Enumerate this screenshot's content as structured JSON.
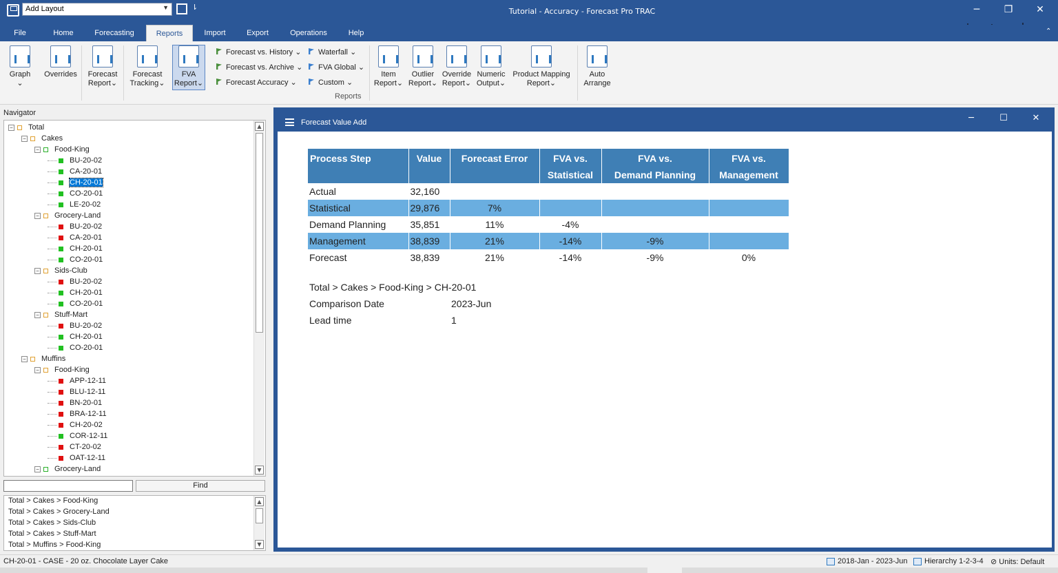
{
  "titlebar": {
    "layout_value": "Add Layout",
    "app_title": "Tutorial - Accuracy - Forecast Pro TRAC",
    "minimize": "─",
    "restore": "❐",
    "close": "✕"
  },
  "tabs": [
    "File",
    "Home",
    "Forecasting",
    "Reports",
    "Import",
    "Export",
    "Operations",
    "Help"
  ],
  "active_tab": "Reports",
  "ribbon": {
    "graph": "Graph",
    "overrides": "Overrides",
    "forecast_report": [
      "Forecast",
      "Report"
    ],
    "forecast_tracking": [
      "Forecast",
      "Tracking"
    ],
    "fva_report": [
      "FVA",
      "Report"
    ],
    "fcst_vs_history": "Forecast vs. History",
    "fcst_vs_archive": "Forecast vs. Archive",
    "fcst_accuracy": "Forecast Accuracy",
    "waterfall": "Waterfall",
    "fva_global": "FVA Global",
    "custom": "Custom",
    "item_report": [
      "Item",
      "Report"
    ],
    "outlier_report": [
      "Outlier",
      "Report"
    ],
    "override_report": [
      "Override",
      "Report"
    ],
    "numeric_output": [
      "Numeric",
      "Output"
    ],
    "product_mapping": [
      "Product Mapping",
      "Report"
    ],
    "auto_arrange": [
      "Auto",
      "Arrange"
    ],
    "group_label": "Reports"
  },
  "navigator": {
    "label": "Navigator",
    "tree": [
      {
        "label": "Total",
        "level": 0,
        "kind": "folder",
        "color": "orange"
      },
      {
        "label": "Cakes",
        "level": 1,
        "kind": "folder",
        "color": "orange"
      },
      {
        "label": "Food-King",
        "level": 2,
        "kind": "folder",
        "color": "green"
      },
      {
        "label": "BU-20-02",
        "level": 3,
        "kind": "item",
        "color": "green"
      },
      {
        "label": "CA-20-01",
        "level": 3,
        "kind": "item",
        "color": "green"
      },
      {
        "label": "CH-20-01",
        "level": 3,
        "kind": "item",
        "color": "green",
        "selected": true
      },
      {
        "label": "CO-20-01",
        "level": 3,
        "kind": "item",
        "color": "green"
      },
      {
        "label": "LE-20-02",
        "level": 3,
        "kind": "item",
        "color": "green"
      },
      {
        "label": "Grocery-Land",
        "level": 2,
        "kind": "folder",
        "color": "orange"
      },
      {
        "label": "BU-20-02",
        "level": 3,
        "kind": "item",
        "color": "red"
      },
      {
        "label": "CA-20-01",
        "level": 3,
        "kind": "item",
        "color": "red"
      },
      {
        "label": "CH-20-01",
        "level": 3,
        "kind": "item",
        "color": "green"
      },
      {
        "label": "CO-20-01",
        "level": 3,
        "kind": "item",
        "color": "green"
      },
      {
        "label": "Sids-Club",
        "level": 2,
        "kind": "folder",
        "color": "orange"
      },
      {
        "label": "BU-20-02",
        "level": 3,
        "kind": "item",
        "color": "red"
      },
      {
        "label": "CH-20-01",
        "level": 3,
        "kind": "item",
        "color": "green"
      },
      {
        "label": "CO-20-01",
        "level": 3,
        "kind": "item",
        "color": "green"
      },
      {
        "label": "Stuff-Mart",
        "level": 2,
        "kind": "folder",
        "color": "orange"
      },
      {
        "label": "BU-20-02",
        "level": 3,
        "kind": "item",
        "color": "red"
      },
      {
        "label": "CH-20-01",
        "level": 3,
        "kind": "item",
        "color": "green"
      },
      {
        "label": "CO-20-01",
        "level": 3,
        "kind": "item",
        "color": "green"
      },
      {
        "label": "Muffins",
        "level": 1,
        "kind": "folder",
        "color": "orange"
      },
      {
        "label": "Food-King",
        "level": 2,
        "kind": "folder",
        "color": "orange"
      },
      {
        "label": "APP-12-11",
        "level": 3,
        "kind": "item",
        "color": "red"
      },
      {
        "label": "BLU-12-11",
        "level": 3,
        "kind": "item",
        "color": "red"
      },
      {
        "label": "BN-20-01",
        "level": 3,
        "kind": "item",
        "color": "red"
      },
      {
        "label": "BRA-12-11",
        "level": 3,
        "kind": "item",
        "color": "red"
      },
      {
        "label": "CH-20-02",
        "level": 3,
        "kind": "item",
        "color": "red"
      },
      {
        "label": "COR-12-11",
        "level": 3,
        "kind": "item",
        "color": "green"
      },
      {
        "label": "CT-20-02",
        "level": 3,
        "kind": "item",
        "color": "red"
      },
      {
        "label": "OAT-12-11",
        "level": 3,
        "kind": "item",
        "color": "red"
      },
      {
        "label": "Grocery-Land",
        "level": 2,
        "kind": "folder",
        "color": "green"
      }
    ],
    "find_value": "",
    "find_label": "Find",
    "results": [
      "Total > Cakes > Food-King",
      "Total > Cakes > Grocery-Land",
      "Total > Cakes > Sids-Club",
      "Total > Cakes > Stuff-Mart",
      "Total > Muffins > Food-King"
    ]
  },
  "doc": {
    "title": "Forecast Value Add",
    "table": {
      "headers": [
        [
          "Process Step"
        ],
        [
          "Value"
        ],
        [
          "Forecast Error"
        ],
        [
          "FVA vs.",
          "Statistical"
        ],
        [
          "FVA vs.",
          "Demand Planning"
        ],
        [
          "FVA vs.",
          "Management"
        ]
      ],
      "rows": [
        {
          "cells": [
            "Actual",
            "32,160",
            "",
            "",
            "",
            ""
          ],
          "highlight": false
        },
        {
          "cells": [
            "Statistical",
            "29,876",
            "7%",
            "",
            "",
            ""
          ],
          "highlight": true
        },
        {
          "cells": [
            "Demand Planning",
            "35,851",
            "11%",
            "-4%",
            "",
            ""
          ],
          "highlight": false
        },
        {
          "cells": [
            "Management",
            "38,839",
            "21%",
            "-14%",
            "-9%",
            ""
          ],
          "highlight": true
        },
        {
          "cells": [
            "Forecast",
            "38,839",
            "21%",
            "-14%",
            "-9%",
            "0%"
          ],
          "highlight": false
        }
      ]
    },
    "path": "Total > Cakes > Food-King > CH-20-01",
    "comparison_label": "Comparison Date",
    "comparison_value": "2023-Jun",
    "lead_label": "Lead time",
    "lead_value": "1"
  },
  "statusbar": {
    "item_desc": "CH-20-01 - CASE - 20 oz. Chocolate Layer Cake",
    "date_range": "2018-Jan - 2023-Jun",
    "hierarchy": "Hierarchy 1-2-3-4",
    "units": "Units: Default"
  },
  "colors": {
    "accent": "#2b5797",
    "table_header": "#3f7fb5",
    "table_highlight": "#6aaee0",
    "status_green": "#22c022",
    "status_red": "#e01010"
  }
}
